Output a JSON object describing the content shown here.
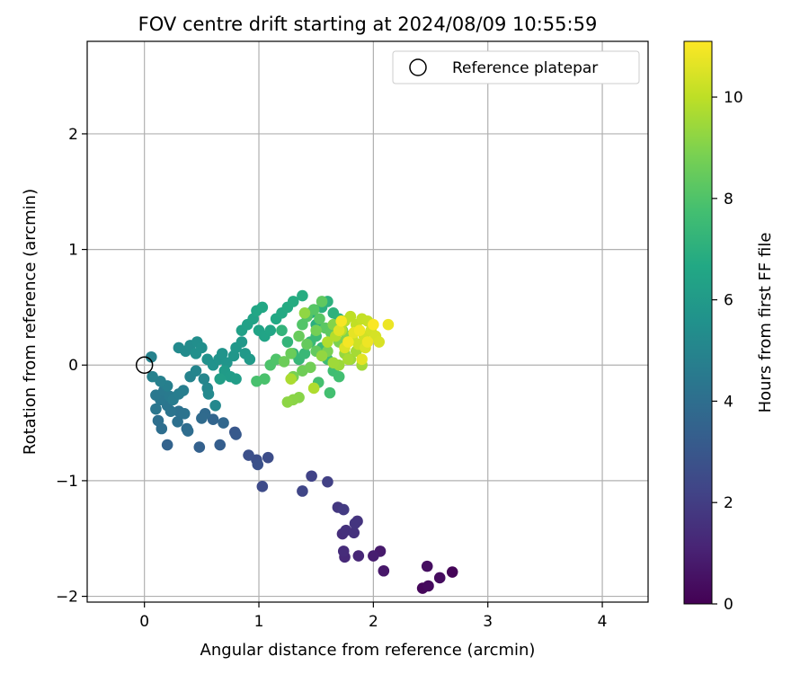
{
  "chart_data": {
    "type": "scatter",
    "title": "FOV centre drift starting at 2024/08/09 10:55:59",
    "xlabel": "Angular distance from reference (arcmin)",
    "ylabel": "Rotation from reference (arcmin)",
    "xlim": [
      -0.5,
      4.4
    ],
    "ylim": [
      -2.05,
      2.8
    ],
    "xticks": [
      "0",
      "1",
      "2",
      "3",
      "4"
    ],
    "yticks": [
      "−2",
      "−1",
      "0",
      "1",
      "2"
    ],
    "grid": true,
    "legend": {
      "placement": "top-right",
      "entries": [
        "Reference platepar"
      ]
    },
    "reference_point": {
      "x": 0,
      "y": 0
    },
    "colorbar": {
      "label": "Hours from first FF file",
      "colormap": "viridis",
      "range": [
        0,
        11.1
      ],
      "ticks": [
        "0",
        "2",
        "4",
        "6",
        "8",
        "10"
      ]
    },
    "series": [
      {
        "points": [
          {
            "x": 2.69,
            "y": -1.79,
            "c": 0.1
          },
          {
            "x": 2.43,
            "y": -1.93,
            "c": 0.2
          },
          {
            "x": 2.48,
            "y": -1.91,
            "c": 0.3
          },
          {
            "x": 2.58,
            "y": -1.84,
            "c": 0.35
          },
          {
            "x": 2.47,
            "y": -1.74,
            "c": 0.4
          },
          {
            "x": 2.09,
            "y": -1.78,
            "c": 0.7
          },
          {
            "x": 2.06,
            "y": -1.61,
            "c": 0.8
          },
          {
            "x": 2.0,
            "y": -1.65,
            "c": 0.9
          },
          {
            "x": 1.87,
            "y": -1.65,
            "c": 1.2
          },
          {
            "x": 1.75,
            "y": -1.66,
            "c": 1.3
          },
          {
            "x": 1.74,
            "y": -1.61,
            "c": 1.4
          },
          {
            "x": 1.73,
            "y": -1.46,
            "c": 1.5
          },
          {
            "x": 1.76,
            "y": -1.43,
            "c": 1.55
          },
          {
            "x": 1.83,
            "y": -1.45,
            "c": 1.6
          },
          {
            "x": 1.86,
            "y": -1.35,
            "c": 1.65
          },
          {
            "x": 1.84,
            "y": -1.37,
            "c": 1.7
          },
          {
            "x": 1.69,
            "y": -1.23,
            "c": 1.8
          },
          {
            "x": 1.74,
            "y": -1.25,
            "c": 1.9
          },
          {
            "x": 1.6,
            "y": -1.01,
            "c": 2.1
          },
          {
            "x": 1.46,
            "y": -0.96,
            "c": 2.2
          },
          {
            "x": 1.38,
            "y": -1.09,
            "c": 2.3
          },
          {
            "x": 1.03,
            "y": -1.05,
            "c": 2.5
          },
          {
            "x": 1.08,
            "y": -0.8,
            "c": 2.6
          },
          {
            "x": 0.98,
            "y": -0.82,
            "c": 2.65
          },
          {
            "x": 0.91,
            "y": -0.78,
            "c": 2.7
          },
          {
            "x": 0.99,
            "y": -0.86,
            "c": 2.75
          },
          {
            "x": 0.79,
            "y": -0.58,
            "c": 3.0
          },
          {
            "x": 0.8,
            "y": -0.6,
            "c": 3.1
          },
          {
            "x": 0.66,
            "y": -0.69,
            "c": 3.3
          },
          {
            "x": 0.48,
            "y": -0.71,
            "c": 3.4
          },
          {
            "x": 0.2,
            "y": -0.69,
            "c": 3.5
          },
          {
            "x": 0.6,
            "y": -0.47,
            "c": 3.6
          },
          {
            "x": 0.69,
            "y": -0.5,
            "c": 3.7
          },
          {
            "x": 0.53,
            "y": -0.42,
            "c": 3.8
          },
          {
            "x": 0.5,
            "y": -0.46,
            "c": 3.85
          },
          {
            "x": 0.37,
            "y": -0.55,
            "c": 3.9
          },
          {
            "x": 0.38,
            "y": -0.57,
            "c": 3.95
          },
          {
            "x": 0.15,
            "y": -0.55,
            "c": 4.0
          },
          {
            "x": 0.12,
            "y": -0.48,
            "c": 4.05
          },
          {
            "x": 0.29,
            "y": -0.49,
            "c": 4.1
          },
          {
            "x": 0.3,
            "y": -0.4,
            "c": 4.15
          },
          {
            "x": 0.35,
            "y": -0.42,
            "c": 4.2
          },
          {
            "x": 0.23,
            "y": -0.4,
            "c": 4.25
          },
          {
            "x": 0.2,
            "y": -0.35,
            "c": 4.3
          },
          {
            "x": 0.1,
            "y": -0.38,
            "c": 4.35
          },
          {
            "x": 0.14,
            "y": -0.3,
            "c": 4.4
          },
          {
            "x": 0.1,
            "y": -0.26,
            "c": 4.45
          },
          {
            "x": 0.17,
            "y": -0.22,
            "c": 4.5
          },
          {
            "x": 0.22,
            "y": -0.27,
            "c": 4.55
          },
          {
            "x": 0.25,
            "y": -0.3,
            "c": 4.6
          },
          {
            "x": 0.3,
            "y": -0.25,
            "c": 4.65
          },
          {
            "x": 0.34,
            "y": -0.22,
            "c": 4.7
          },
          {
            "x": 0.2,
            "y": -0.18,
            "c": 4.75
          },
          {
            "x": 0.14,
            "y": -0.14,
            "c": 4.8
          },
          {
            "x": 0.07,
            "y": -0.1,
            "c": 4.85
          },
          {
            "x": 0.06,
            "y": 0.07,
            "c": 4.9
          },
          {
            "x": 0.4,
            "y": -0.1,
            "c": 4.95
          },
          {
            "x": 0.45,
            "y": -0.05,
            "c": 5.0
          },
          {
            "x": 0.52,
            "y": -0.12,
            "c": 5.05
          },
          {
            "x": 0.55,
            "y": -0.2,
            "c": 5.1
          },
          {
            "x": 0.62,
            "y": -0.35,
            "c": 5.15
          },
          {
            "x": 0.56,
            "y": -0.25,
            "c": 5.2
          },
          {
            "x": 0.3,
            "y": 0.15,
            "c": 5.25
          },
          {
            "x": 0.36,
            "y": 0.12,
            "c": 5.3
          },
          {
            "x": 0.4,
            "y": 0.17,
            "c": 5.35
          },
          {
            "x": 0.46,
            "y": 0.2,
            "c": 5.4
          },
          {
            "x": 0.5,
            "y": 0.15,
            "c": 5.45
          },
          {
            "x": 0.45,
            "y": 0.1,
            "c": 5.5
          },
          {
            "x": 0.55,
            "y": 0.05,
            "c": 5.55
          },
          {
            "x": 0.6,
            "y": 0.0,
            "c": 5.6
          },
          {
            "x": 0.65,
            "y": 0.05,
            "c": 5.65
          },
          {
            "x": 0.68,
            "y": 0.1,
            "c": 5.7
          },
          {
            "x": 0.72,
            "y": 0.02,
            "c": 5.75
          },
          {
            "x": 0.78,
            "y": 0.08,
            "c": 5.8
          },
          {
            "x": 0.8,
            "y": 0.15,
            "c": 5.85
          },
          {
            "x": 0.85,
            "y": 0.2,
            "c": 5.9
          },
          {
            "x": 0.88,
            "y": 0.1,
            "c": 5.95
          },
          {
            "x": 0.92,
            "y": 0.05,
            "c": 6.0
          },
          {
            "x": 0.7,
            "y": -0.05,
            "c": 6.05
          },
          {
            "x": 0.75,
            "y": -0.1,
            "c": 6.1
          },
          {
            "x": 0.8,
            "y": -0.12,
            "c": 6.15
          },
          {
            "x": 0.66,
            "y": -0.12,
            "c": 6.2
          },
          {
            "x": 0.85,
            "y": 0.3,
            "c": 6.25
          },
          {
            "x": 0.9,
            "y": 0.35,
            "c": 6.3
          },
          {
            "x": 0.95,
            "y": 0.4,
            "c": 6.35
          },
          {
            "x": 1.0,
            "y": 0.3,
            "c": 6.4
          },
          {
            "x": 1.05,
            "y": 0.25,
            "c": 6.45
          },
          {
            "x": 1.1,
            "y": 0.3,
            "c": 6.5
          },
          {
            "x": 0.98,
            "y": 0.47,
            "c": 6.55
          },
          {
            "x": 1.03,
            "y": 0.5,
            "c": 6.6
          },
          {
            "x": 1.15,
            "y": 0.4,
            "c": 6.65
          },
          {
            "x": 1.2,
            "y": 0.45,
            "c": 6.7
          },
          {
            "x": 1.25,
            "y": 0.5,
            "c": 6.75
          },
          {
            "x": 1.3,
            "y": 0.55,
            "c": 6.8
          },
          {
            "x": 1.38,
            "y": 0.6,
            "c": 6.85
          },
          {
            "x": 1.45,
            "y": 0.45,
            "c": 6.9
          },
          {
            "x": 1.5,
            "y": 0.35,
            "c": 6.95
          },
          {
            "x": 1.55,
            "y": 0.5,
            "c": 7.0
          },
          {
            "x": 1.6,
            "y": 0.55,
            "c": 7.05
          },
          {
            "x": 1.65,
            "y": 0.45,
            "c": 7.1
          },
          {
            "x": 1.7,
            "y": 0.4,
            "c": 7.15
          },
          {
            "x": 1.2,
            "y": 0.3,
            "c": 7.2
          },
          {
            "x": 1.25,
            "y": 0.2,
            "c": 7.25
          },
          {
            "x": 1.3,
            "y": 0.1,
            "c": 7.3
          },
          {
            "x": 1.35,
            "y": 0.05,
            "c": 7.35
          },
          {
            "x": 1.4,
            "y": 0.1,
            "c": 7.4
          },
          {
            "x": 1.45,
            "y": 0.2,
            "c": 7.45
          },
          {
            "x": 1.5,
            "y": 0.25,
            "c": 7.5
          },
          {
            "x": 1.55,
            "y": 0.15,
            "c": 7.55
          },
          {
            "x": 1.6,
            "y": 0.05,
            "c": 7.6
          },
          {
            "x": 1.65,
            "y": -0.05,
            "c": 7.65
          },
          {
            "x": 1.7,
            "y": -0.1,
            "c": 7.7
          },
          {
            "x": 1.62,
            "y": -0.24,
            "c": 7.75
          },
          {
            "x": 1.52,
            "y": -0.15,
            "c": 7.8
          },
          {
            "x": 0.98,
            "y": -0.14,
            "c": 7.85
          },
          {
            "x": 1.05,
            "y": -0.12,
            "c": 7.9
          },
          {
            "x": 1.1,
            "y": 0.0,
            "c": 7.95
          },
          {
            "x": 1.15,
            "y": 0.05,
            "c": 8.0
          },
          {
            "x": 1.38,
            "y": 0.35,
            "c": 8.05
          },
          {
            "x": 1.42,
            "y": 0.42,
            "c": 8.1
          },
          {
            "x": 1.48,
            "y": 0.48,
            "c": 8.15
          },
          {
            "x": 1.53,
            "y": 0.4,
            "c": 8.2
          },
          {
            "x": 1.58,
            "y": 0.32,
            "c": 8.25
          },
          {
            "x": 1.63,
            "y": 0.28,
            "c": 8.3
          },
          {
            "x": 1.55,
            "y": 0.55,
            "c": 8.35
          },
          {
            "x": 1.5,
            "y": 0.12,
            "c": 8.4
          },
          {
            "x": 1.42,
            "y": 0.18,
            "c": 8.45
          },
          {
            "x": 1.35,
            "y": 0.25,
            "c": 8.5
          },
          {
            "x": 1.28,
            "y": 0.1,
            "c": 8.55
          },
          {
            "x": 1.22,
            "y": 0.03,
            "c": 8.6
          },
          {
            "x": 1.38,
            "y": -0.05,
            "c": 8.65
          },
          {
            "x": 1.45,
            "y": -0.02,
            "c": 8.7
          },
          {
            "x": 1.5,
            "y": 0.3,
            "c": 8.75
          },
          {
            "x": 1.3,
            "y": -0.1,
            "c": 8.8
          },
          {
            "x": 1.6,
            "y": 0.12,
            "c": 8.85
          },
          {
            "x": 1.7,
            "y": 0.2,
            "c": 8.9
          },
          {
            "x": 1.73,
            "y": 0.3,
            "c": 8.95
          },
          {
            "x": 1.77,
            "y": 0.25,
            "c": 9.0
          },
          {
            "x": 1.65,
            "y": 0.35,
            "c": 9.05
          },
          {
            "x": 1.35,
            "y": -0.28,
            "c": 9.1
          },
          {
            "x": 1.3,
            "y": -0.3,
            "c": 9.15
          },
          {
            "x": 1.25,
            "y": -0.32,
            "c": 9.2
          },
          {
            "x": 1.4,
            "y": 0.45,
            "c": 9.25
          },
          {
            "x": 1.55,
            "y": 0.08,
            "c": 9.3
          },
          {
            "x": 1.75,
            "y": 0.1,
            "c": 9.35
          },
          {
            "x": 1.8,
            "y": 0.05,
            "c": 9.4
          },
          {
            "x": 1.7,
            "y": 0.0,
            "c": 9.45
          },
          {
            "x": 1.65,
            "y": 0.02,
            "c": 9.5
          },
          {
            "x": 1.9,
            "y": 0.0,
            "c": 9.55
          },
          {
            "x": 1.85,
            "y": 0.12,
            "c": 9.6
          },
          {
            "x": 1.78,
            "y": 0.05,
            "c": 9.65
          },
          {
            "x": 1.28,
            "y": -0.12,
            "c": 9.7
          },
          {
            "x": 1.48,
            "y": -0.2,
            "c": 9.75
          },
          {
            "x": 1.6,
            "y": 0.2,
            "c": 9.8
          },
          {
            "x": 1.67,
            "y": 0.25,
            "c": 9.85
          },
          {
            "x": 1.72,
            "y": 0.3,
            "c": 9.9
          },
          {
            "x": 1.75,
            "y": 0.38,
            "c": 9.95
          },
          {
            "x": 1.8,
            "y": 0.42,
            "c": 10.0
          },
          {
            "x": 1.85,
            "y": 0.35,
            "c": 10.05
          },
          {
            "x": 1.9,
            "y": 0.4,
            "c": 10.1
          },
          {
            "x": 1.95,
            "y": 0.38,
            "c": 10.15
          },
          {
            "x": 1.82,
            "y": 0.22,
            "c": 10.2
          },
          {
            "x": 1.87,
            "y": 0.18,
            "c": 10.25
          },
          {
            "x": 1.92,
            "y": 0.25,
            "c": 10.3
          },
          {
            "x": 1.98,
            "y": 0.3,
            "c": 10.35
          },
          {
            "x": 2.02,
            "y": 0.25,
            "c": 10.4
          },
          {
            "x": 2.05,
            "y": 0.2,
            "c": 10.45
          },
          {
            "x": 1.93,
            "y": 0.15,
            "c": 10.5
          },
          {
            "x": 1.75,
            "y": 0.15,
            "c": 10.55
          },
          {
            "x": 1.7,
            "y": 0.3,
            "c": 10.6
          },
          {
            "x": 1.9,
            "y": 0.05,
            "c": 10.65
          },
          {
            "x": 1.83,
            "y": 0.28,
            "c": 10.7
          },
          {
            "x": 2.13,
            "y": 0.35,
            "c": 10.8
          },
          {
            "x": 1.95,
            "y": 0.2,
            "c": 10.85
          },
          {
            "x": 1.88,
            "y": 0.3,
            "c": 10.9
          },
          {
            "x": 1.78,
            "y": 0.2,
            "c": 10.95
          },
          {
            "x": 1.72,
            "y": 0.38,
            "c": 11.0
          },
          {
            "x": 2.0,
            "y": 0.35,
            "c": 11.05
          }
        ]
      }
    ]
  }
}
